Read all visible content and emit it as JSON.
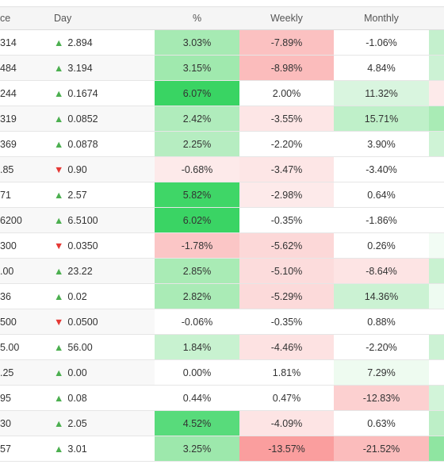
{
  "table": {
    "header": [
      "ce",
      "Day",
      "%",
      "Weekly",
      "Monthly"
    ],
    "rows": [
      [
        "314",
        "▲ 2.894",
        "3.03%",
        "-7.89%",
        "-1.06%"
      ],
      [
        "484",
        "▲ 3.194",
        "3.15%",
        "-8.98%",
        "4.84%"
      ],
      [
        "244",
        "▲ 0.1674",
        "6.07%",
        "2.00%",
        "11.32%"
      ],
      [
        "319",
        "▲ 0.0852",
        "2.42%",
        "-3.55%",
        "15.71%"
      ],
      [
        "369",
        "▲ 0.0878",
        "2.25%",
        "-2.20%",
        "3.90%"
      ],
      [
        ".85",
        "▼ 0.90",
        "-0.68%",
        "-3.47%",
        "-3.40%"
      ],
      [
        "71",
        "▲ 2.57",
        "5.82%",
        "-2.98%",
        "0.64%"
      ],
      [
        "6200",
        "▲ 6.5100",
        "6.02%",
        "-0.35%",
        "-1.86%"
      ],
      [
        "300",
        "▼ 0.0350",
        "-1.78%",
        "-5.62%",
        "0.26%"
      ],
      [
        ".00",
        "▲ 23.22",
        "2.85%",
        "-5.10%",
        "-8.64%"
      ],
      [
        "36",
        "▲ 0.02",
        "2.82%",
        "-5.29%",
        "14.36%"
      ],
      [
        "500",
        "▼ 0.0500",
        "-0.06%",
        "-0.35%",
        "0.88%"
      ],
      [
        "5.00",
        "▲ 56.00",
        "1.84%",
        "-4.46%",
        "-2.20%"
      ],
      [
        ".25",
        "▲ 0.00",
        "0.00%",
        "1.81%",
        "7.29%"
      ],
      [
        "95",
        "▲ 0.08",
        "0.44%",
        "0.47%",
        "-12.83%"
      ],
      [
        "30",
        "▲ 2.05",
        "4.52%",
        "-4.09%",
        "0.63%"
      ],
      [
        "57",
        "▲ 3.01",
        "3.25%",
        "-13.57%",
        "-21.52%"
      ]
    ],
    "column_colors": {
      "2": [
        "#a6eab3",
        "#a0e9ae",
        "#39d463",
        "#b0ecbc",
        "#b6edc1",
        "#fdeaea",
        "#3fd667",
        "#3ad464",
        "#fbc6c6",
        "#a9ebb5",
        "#aaebb6",
        "#ffffff",
        "#c8f2d0",
        "#ffffff",
        "#ffffff",
        "#58db7b",
        "#9de8ac"
      ],
      "3": [
        "#fbc1c1",
        "#fbbcbc",
        "#ffffff",
        "#fde6e6",
        "#ffffff",
        "#fde6e6",
        "#fdeaea",
        "#ffffff",
        "#fcd8d8",
        "#fcdcdc",
        "#fcdada",
        "#ffffff",
        "#fde2e2",
        "#ffffff",
        "#ffffff",
        "#fde4e4",
        "#fa9e9e"
      ],
      "4": [
        "#ffffff",
        "#ffffff",
        "#d9f5df",
        "#bff0c9",
        "#ffffff",
        "#ffffff",
        "#ffffff",
        "#ffffff",
        "#ffffff",
        "#fde4e4",
        "#cbf2d3",
        "#ffffff",
        "#ffffff",
        "#eefbf0",
        "#fcd0d0",
        "#ffffff",
        "#fbbcbc"
      ]
    },
    "edge_colors": [
      "#c4f0cd",
      "#ccf2d4",
      "#fdeaea",
      "#a9ebb5",
      "#cff3d6",
      "#ffffff",
      "#ffffff",
      "#ffffff",
      "#f2fcf4",
      "#c9f2d1",
      "#eefbf1",
      "#ffffff",
      "#ccf2d4",
      "#ffffff",
      "#d2f4d9",
      "#bdefc7",
      "#8fe5a1"
    ]
  }
}
